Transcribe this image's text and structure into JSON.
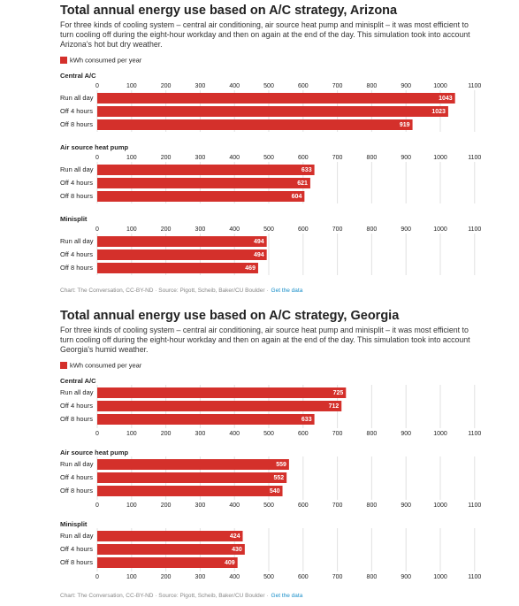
{
  "chart_data": [
    {
      "type": "bar",
      "orientation": "horizontal",
      "title": "Total annual energy use based on A/C strategy, Arizona",
      "subtitle": "For three kinds of cooling system – central air conditioning, air source heat pump and minisplit – it was most efficient to turn cooling off during the eight-hour workday and then on again at the end of the day. This simulation took into account Arizona's hot but dry weather.",
      "legend": "kWh consumed per year",
      "color": "#d4302b",
      "xlim": [
        0,
        1100
      ],
      "xticks": [
        0,
        100,
        200,
        300,
        400,
        500,
        600,
        700,
        800,
        900,
        1000,
        1100
      ],
      "grid": true,
      "tick_position": "top",
      "panels": [
        {
          "title": "Central A/C",
          "categories": [
            "Run all day",
            "Off 4 hours",
            "Off 8 hours"
          ],
          "values": [
            1043,
            1023,
            919
          ]
        },
        {
          "title": "Air source heat pump",
          "categories": [
            "Run all day",
            "Off 4 hours",
            "Off 8 hours"
          ],
          "values": [
            633,
            621,
            604
          ]
        },
        {
          "title": "Minisplit",
          "categories": [
            "Run all day",
            "Off 4 hours",
            "Off 8 hours"
          ],
          "values": [
            494,
            494,
            469
          ]
        }
      ],
      "source": "Chart: The Conversation, CC-BY-ND · Source: Pigott, Scheib, Baker/CU Boulder ·",
      "link": "Get the data"
    },
    {
      "type": "bar",
      "orientation": "horizontal",
      "title": "Total annual energy use based on A/C strategy, Georgia",
      "subtitle": "For three kinds of cooling system – central air conditioning, air source heat pump and minisplit – it was most efficient to turn cooling off during the eight-hour workday and then on again at the end of the day. This simulation took into account Georgia's humid weather.",
      "legend": "kWh consumed per year",
      "color": "#d4302b",
      "xlim": [
        0,
        1100
      ],
      "xticks": [
        0,
        100,
        200,
        300,
        400,
        500,
        600,
        700,
        800,
        900,
        1000,
        1100
      ],
      "grid": true,
      "tick_position": "bottom",
      "panels": [
        {
          "title": "Central A/C",
          "categories": [
            "Run all day",
            "Off 4 hours",
            "Off 8 hours"
          ],
          "values": [
            725,
            712,
            633
          ]
        },
        {
          "title": "Air source heat pump",
          "categories": [
            "Run all day",
            "Off 4 hours",
            "Off 8 hours"
          ],
          "values": [
            559,
            552,
            540
          ]
        },
        {
          "title": "Minisplit",
          "categories": [
            "Run all day",
            "Off 4 hours",
            "Off 8 hours"
          ],
          "values": [
            424,
            430,
            409
          ]
        }
      ],
      "source": "Chart: The Conversation, CC-BY-ND · Source: Pigott, Scheib, Baker/CU Boulder ·",
      "link": "Get the data"
    }
  ]
}
